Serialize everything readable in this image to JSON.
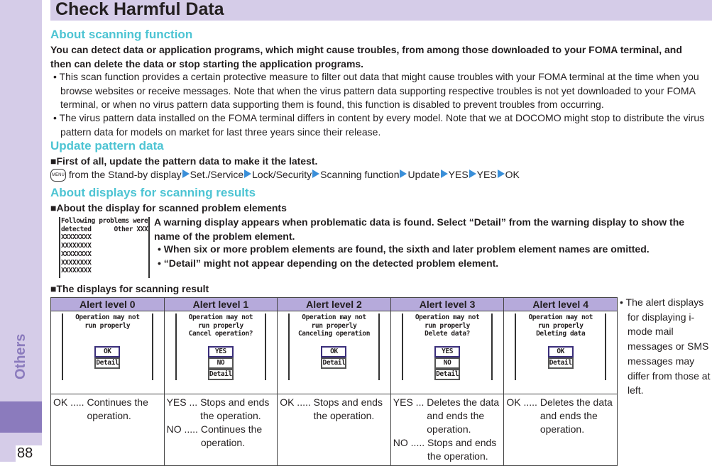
{
  "sidebar": {
    "section": "Others",
    "page_number": "88"
  },
  "title": "Check Harmful Data",
  "scan": {
    "heading": "About scanning function",
    "lead": "You can detect data or application programs, which might cause troubles, from among those downloaded to your FOMA terminal, and then can delete the data or stop starting the application programs.",
    "bullets": [
      "This scan function provides a certain protective measure to filter out data that might cause troubles with your FOMA terminal at the time when you browse websites or receive messages. Note that when the virus pattern data supporting respective troubles is not yet downloaded to your FOMA terminal, or when no virus pattern data supporting them is found, this function is disabled to prevent troubles from occurring.",
      "The virus pattern data installed on the FOMA terminal differs in content by every model. Note that we at DOCOMO might stop to distribute the virus pattern data for models on market for last three years since their release."
    ]
  },
  "update": {
    "heading": "Update pattern data",
    "lead": "First of all, update the pattern data to make it the latest.",
    "menu_key": "MENU",
    "start": "from the Stand-by display",
    "steps": [
      "Set./Service",
      "Lock/Security",
      "Scanning function",
      "Update",
      "YES",
      "YES",
      "OK"
    ]
  },
  "results": {
    "heading": "About displays for scanning results",
    "sub1": "About the display for scanned problem elements",
    "screen_lines": [
      "Following problems were",
      "detected      Other XXXX",
      "XXXXXXXX",
      "XXXXXXXX",
      "XXXXXXXX",
      "XXXXXXXX",
      "XXXXXXXX"
    ],
    "desc": "A warning display appears when problematic data is found. Select “Detail” from the warning display to show the name of the problem element.",
    "bullets": [
      "When six or more problem elements are found, the sixth and later problem element names are omitted.",
      "“Detail” might not appear depending on the detected problem element."
    ],
    "sub2": "The displays for scanning result"
  },
  "alerts": [
    {
      "header": "Alert level 0",
      "lines": [
        "Operation may not",
        "run properly"
      ],
      "buttons": [
        "OK",
        "Detail"
      ],
      "desc": [
        {
          "k": "OK .....",
          "v": "Continues the operation."
        }
      ]
    },
    {
      "header": "Alert level 1",
      "lines": [
        "Operation may not",
        "run properly",
        "Cancel operation?"
      ],
      "buttons": [
        "YES",
        "NO",
        "Detail"
      ],
      "desc": [
        {
          "k": "YES ...",
          "v": "Stops and ends the operation."
        },
        {
          "k": "NO .....",
          "v": "Continues the operation."
        }
      ]
    },
    {
      "header": "Alert level 2",
      "lines": [
        "Operation may not",
        "run properly",
        "Canceling operation"
      ],
      "buttons": [
        "OK",
        "Detail"
      ],
      "desc": [
        {
          "k": "OK .....",
          "v": "Stops and ends the operation."
        }
      ]
    },
    {
      "header": "Alert level 3",
      "lines": [
        "Operation may not",
        "run properly",
        "Delete data?"
      ],
      "buttons": [
        "YES",
        "NO",
        "Detail"
      ],
      "desc": [
        {
          "k": "YES ...",
          "v": "Deletes the data and ends the operation."
        },
        {
          "k": "NO .....",
          "v": "Stops and ends the operation."
        }
      ]
    },
    {
      "header": "Alert level 4",
      "lines": [
        "Operation may not",
        "run properly",
        "Deleting data"
      ],
      "buttons": [
        "OK",
        "Detail"
      ],
      "desc": [
        {
          "k": "OK .....",
          "v": "Deletes the data and ends the operation."
        }
      ]
    }
  ],
  "note": "The alert displays for displaying i-mode mail messages or SMS messages may differ from those at left.",
  "colors": {
    "sidebar": "#d5cce8",
    "tab": "#8b7bbd",
    "heading": "#4dc4d3",
    "table_header": "#b6aadb",
    "arrow": "#3a8fd9"
  }
}
